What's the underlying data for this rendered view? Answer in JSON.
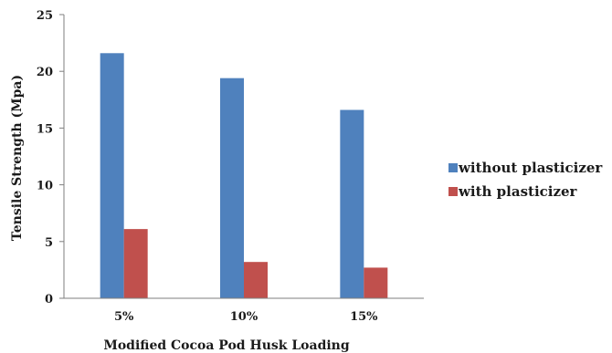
{
  "chart_data": {
    "type": "bar",
    "title": "",
    "xlabel": "Modified Cocoa Pod Husk Loading",
    "ylabel": "Tensile Strength (Mpa)",
    "categories": [
      "5%",
      "10%",
      "15%"
    ],
    "ylim": [
      0,
      25
    ],
    "yticks": [
      0,
      5,
      10,
      15,
      20,
      25
    ],
    "grid": false,
    "legend": "right",
    "series": [
      {
        "name": "without plasticizer",
        "color": "#4f81bd",
        "values": [
          21.6,
          19.4,
          16.6
        ]
      },
      {
        "name": "with plasticizer",
        "color": "#c0504d",
        "values": [
          6.1,
          3.2,
          2.7
        ]
      }
    ]
  }
}
